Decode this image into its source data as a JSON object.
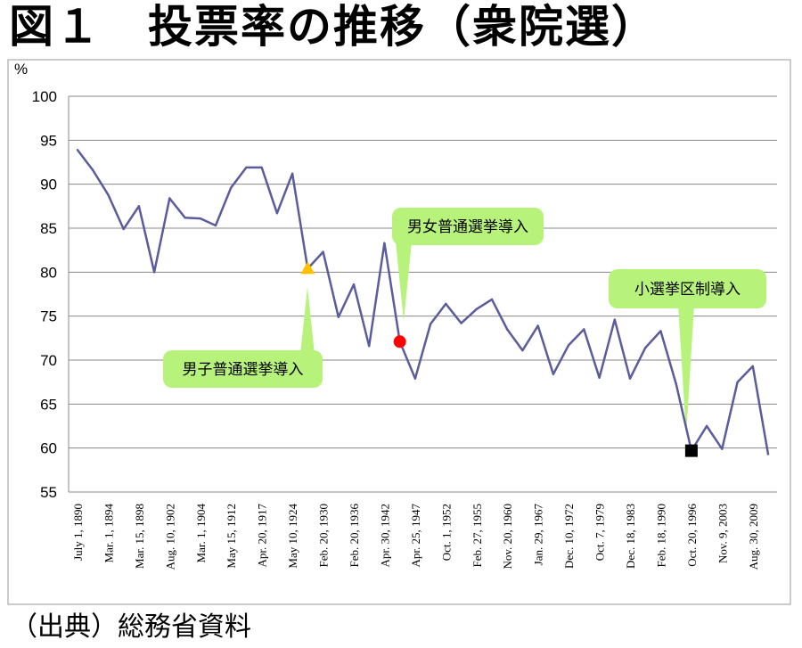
{
  "title": "図１　投票率の推移（衆院選）",
  "source": "（出典）総務省資料",
  "chart_data": {
    "type": "line",
    "ylabel": "%",
    "ylim": [
      55,
      100
    ],
    "yticks": [
      55,
      60,
      65,
      70,
      75,
      80,
      85,
      90,
      95,
      100
    ],
    "grid": true,
    "colors": {
      "line": "#5b5c9c",
      "grid": "#8a8a8a",
      "callout": "#b7f27a",
      "triangle": "#ffc000",
      "circle": "#ff0000",
      "square": "#000000"
    },
    "xticks": [
      "July 1, 1890",
      "Mar. 1, 1894",
      "Mar. 15, 1898",
      "Aug. 10, 1902",
      "Mar. 1, 1904",
      "May 15, 1912",
      "Apr. 20, 1917",
      "May 10, 1924",
      "Feb. 20, 1930",
      "Feb. 20, 1936",
      "Apr. 30, 1942",
      "Apr. 25, 1947",
      "Oct. 1, 1952",
      "Feb. 27, 1955",
      "Nov. 20, 1960",
      "Jan. 29, 1967",
      "Dec. 10, 1972",
      "Oct. 7, 1979",
      "Dec. 18, 1983",
      "Feb. 18, 1990",
      "Oct. 20, 1996",
      "Nov. 9, 2003",
      "Aug. 30, 2009"
    ],
    "values": [
      93.9,
      91.6,
      88.8,
      84.9,
      87.5,
      80.0,
      88.4,
      86.2,
      86.1,
      85.3,
      89.6,
      91.9,
      91.9,
      86.7,
      91.2,
      80.4,
      82.3,
      74.9,
      78.6,
      71.6,
      83.3,
      72.1,
      67.9,
      74.1,
      76.4,
      74.2,
      75.8,
      76.9,
      73.5,
      71.1,
      73.9,
      68.4,
      71.7,
      73.5,
      68.0,
      74.6,
      67.9,
      71.4,
      73.3,
      67.3,
      59.7,
      62.5,
      59.9,
      67.5,
      69.3,
      59.3
    ],
    "tick_every": 2,
    "markers": [
      {
        "index": 15,
        "shape": "triangle"
      },
      {
        "index": 21,
        "shape": "circle"
      },
      {
        "index": 40,
        "shape": "square"
      }
    ],
    "annotations": [
      {
        "text": "男子普通選挙導入",
        "marker": 0
      },
      {
        "text": "男女普通選挙導入",
        "marker": 1
      },
      {
        "text": "小選挙区制導入",
        "marker": 2
      }
    ]
  }
}
